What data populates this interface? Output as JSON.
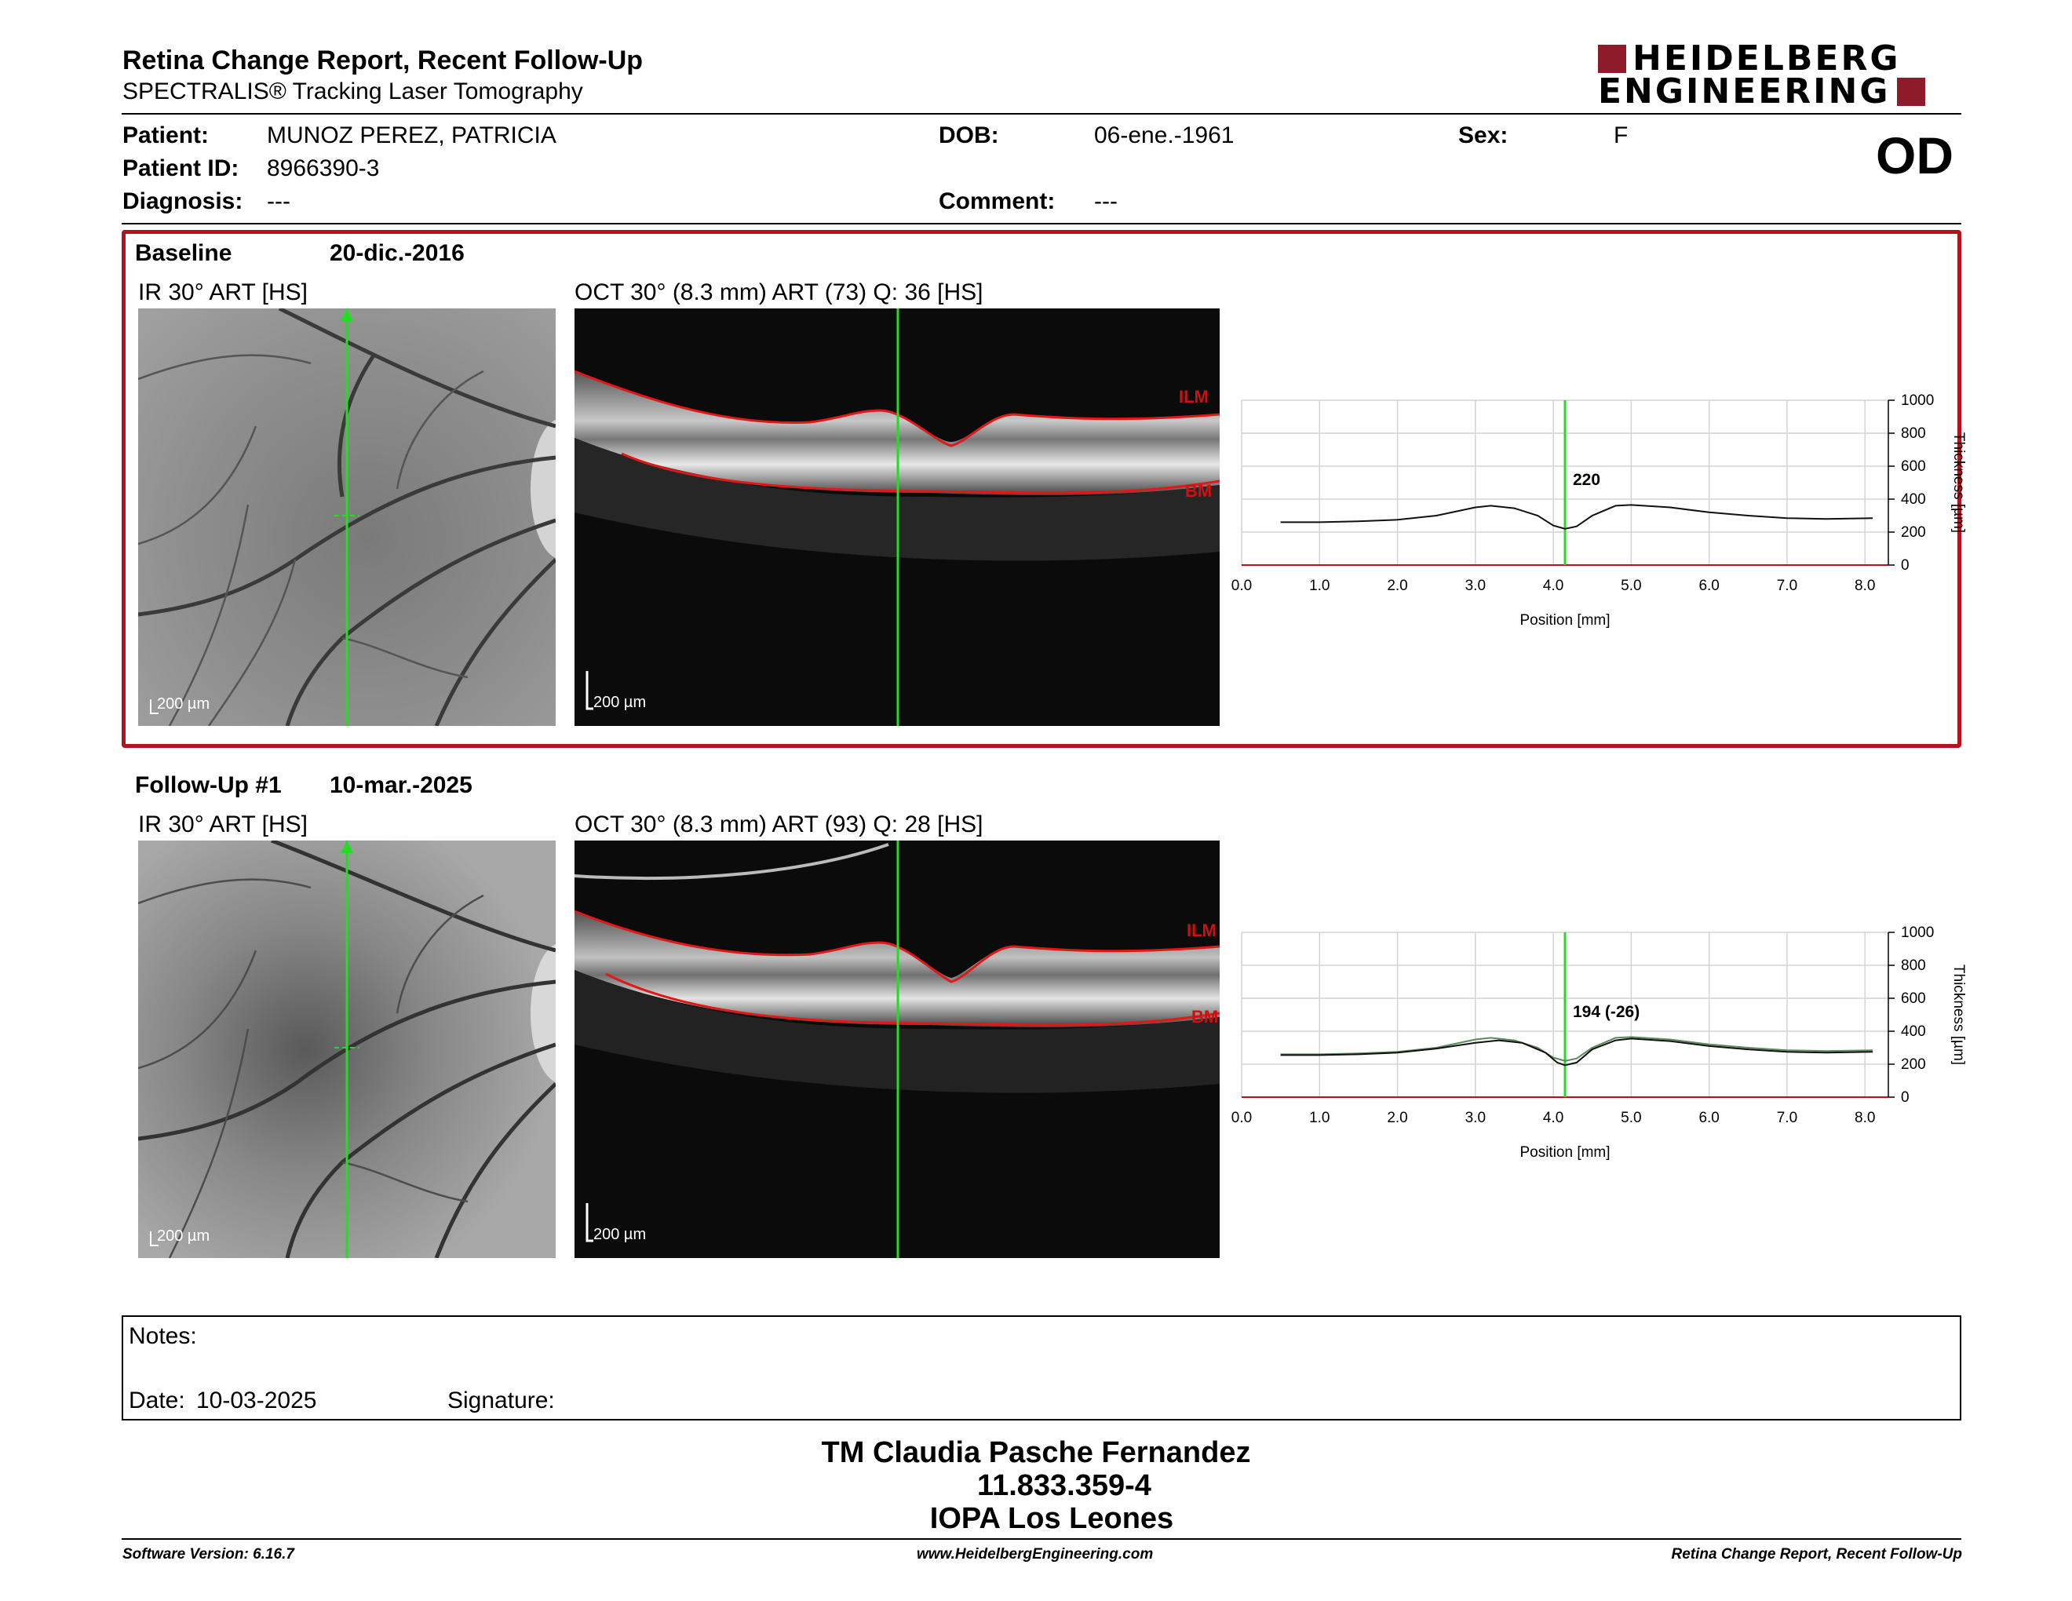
{
  "header": {
    "title": "Retina Change Report, Recent Follow-Up",
    "subtitle": "SPECTRALIS® Tracking Laser Tomography",
    "logo_line1": "HEIDELBERG",
    "logo_line2": "ENGINEERING",
    "eye": "OD"
  },
  "patient": {
    "name_label": "Patient:",
    "name": "MUNOZ PEREZ, PATRICIA",
    "id_label": "Patient ID:",
    "id": "8966390-3",
    "diag_label": "Diagnosis:",
    "diag": "---",
    "dob_label": "DOB:",
    "dob": "06-ene.-1961",
    "comment_label": "Comment:",
    "comment": "---",
    "sex_label": "Sex:",
    "sex": "F"
  },
  "baseline": {
    "label": "Baseline",
    "date": "20-dic.-2016",
    "ir_title": "IR 30° ART [HS]",
    "oct_title": "OCT 30° (8.3 mm) ART (73) Q: 36 [HS]",
    "scale": "200 µm",
    "ilm": "ILM",
    "bm": "BM"
  },
  "followup": {
    "label": "Follow-Up #1",
    "date": "10-mar.-2025",
    "ir_title": "IR 30° ART [HS]",
    "oct_title": "OCT 30° (8.3 mm) ART (93) Q: 28 [HS]",
    "scale": "200 µm",
    "ilm": "ILM",
    "bm": "BM"
  },
  "chart_data": [
    {
      "type": "line",
      "xlabel": "Position [mm]",
      "ylabel": "Thickness [µm]",
      "xlim": [
        0,
        8.3
      ],
      "ylim": [
        0,
        1000
      ],
      "xticks": [
        "0.0",
        "1.0",
        "2.0",
        "3.0",
        "4.0",
        "5.0",
        "6.0",
        "7.0",
        "8.0"
      ],
      "yticks": [
        "0",
        "200",
        "400",
        "600",
        "800",
        "1000"
      ],
      "marker_x": 4.15,
      "marker_label": "220",
      "series": [
        {
          "x": [
            0.5,
            1.0,
            1.5,
            2.0,
            2.5,
            3.0,
            3.2,
            3.5,
            3.8,
            4.0,
            4.15,
            4.3,
            4.5,
            4.8,
            5.0,
            5.5,
            6.0,
            6.5,
            7.0,
            7.5,
            8.1
          ],
          "y": [
            260,
            260,
            265,
            275,
            300,
            350,
            360,
            345,
            300,
            240,
            220,
            235,
            300,
            360,
            365,
            350,
            320,
            300,
            285,
            280,
            285
          ]
        }
      ],
      "grid": true
    },
    {
      "type": "line",
      "xlabel": "Position [mm]",
      "ylabel": "Thickness [µm]",
      "xlim": [
        0,
        8.3
      ],
      "ylim": [
        0,
        1000
      ],
      "xticks": [
        "0.0",
        "1.0",
        "2.0",
        "3.0",
        "4.0",
        "5.0",
        "6.0",
        "7.0",
        "8.0"
      ],
      "yticks": [
        "0",
        "200",
        "400",
        "600",
        "800",
        "1000"
      ],
      "marker_x": 4.15,
      "marker_label": "194 (-26)",
      "series": [
        {
          "x": [
            0.5,
            1.0,
            1.5,
            2.0,
            2.5,
            3.0,
            3.3,
            3.6,
            3.9,
            4.05,
            4.15,
            4.3,
            4.5,
            4.8,
            5.0,
            5.5,
            6.0,
            6.5,
            7.0,
            7.5,
            8.1
          ],
          "y": [
            255,
            255,
            260,
            270,
            295,
            330,
            345,
            330,
            270,
            210,
            194,
            210,
            290,
            345,
            355,
            340,
            310,
            290,
            275,
            270,
            275
          ]
        },
        {
          "x": [
            0.5,
            1.0,
            1.5,
            2.0,
            2.5,
            3.0,
            3.2,
            3.5,
            3.8,
            4.0,
            4.15,
            4.3,
            4.5,
            4.8,
            5.0,
            5.5,
            6.0,
            6.5,
            7.0,
            7.5,
            8.1
          ],
          "y": [
            260,
            260,
            265,
            275,
            300,
            350,
            360,
            345,
            300,
            240,
            220,
            235,
            300,
            360,
            365,
            350,
            320,
            300,
            285,
            280,
            285
          ]
        }
      ],
      "grid": true
    }
  ],
  "notes": {
    "label": "Notes:",
    "date_label": "Date:",
    "date": "10-03-2025",
    "signature_label": "Signature:"
  },
  "signer": {
    "name": "TM Claudia Pasche Fernandez",
    "id": "11.833.359-4",
    "org": "IOPA Los Leones"
  },
  "footer": {
    "software": "Software Version: 6.16.7",
    "website": "www.HeidelbergEngineering.com",
    "report": "Retina Change Report, Recent Follow-Up"
  },
  "colors": {
    "accent": "#b3121f",
    "logo": "#8e1b2a",
    "scanline": "#22dd22"
  }
}
